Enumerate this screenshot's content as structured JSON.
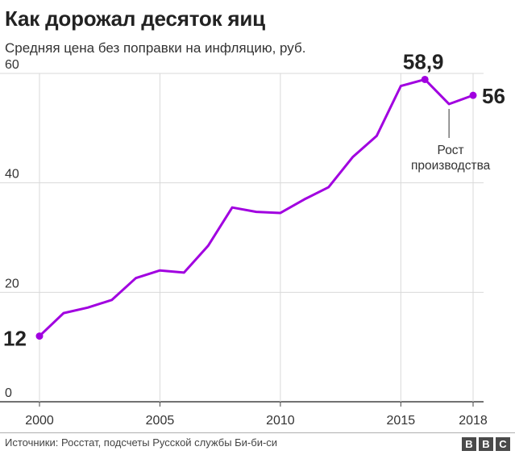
{
  "title": "Как дорожал десяток яиц",
  "subtitle": "Средняя цена без поправки на инфляцию, руб.",
  "source": "Источники: Росстат, подсчеты Русской службы Би-би-си",
  "logo": [
    "B",
    "B",
    "C"
  ],
  "colors": {
    "line": "#a100e0",
    "grid": "#d9d9d9",
    "axis": "#444444"
  },
  "chart_data": {
    "type": "line",
    "x": [
      2000,
      2001,
      2002,
      2003,
      2004,
      2005,
      2006,
      2007,
      2008,
      2009,
      2010,
      2011,
      2012,
      2013,
      2014,
      2015,
      2016,
      2017,
      2018
    ],
    "values": [
      12,
      16.2,
      17.2,
      18.6,
      22.6,
      24.0,
      23.6,
      28.5,
      35.5,
      34.7,
      34.5,
      37.0,
      39.2,
      44.7,
      48.6,
      57.7,
      58.9,
      54.4,
      56
    ],
    "ylim": [
      0,
      60
    ],
    "xlim": [
      2000,
      2018
    ],
    "yticks": [
      0,
      20,
      40,
      60
    ],
    "xticks": [
      2000,
      2005,
      2010,
      2015,
      2018
    ],
    "grid": true,
    "labels": {
      "start": "12",
      "peak": "58,9",
      "end": "56"
    },
    "annotation": {
      "lines": [
        "Рост",
        "производства"
      ],
      "year": 2017
    }
  }
}
